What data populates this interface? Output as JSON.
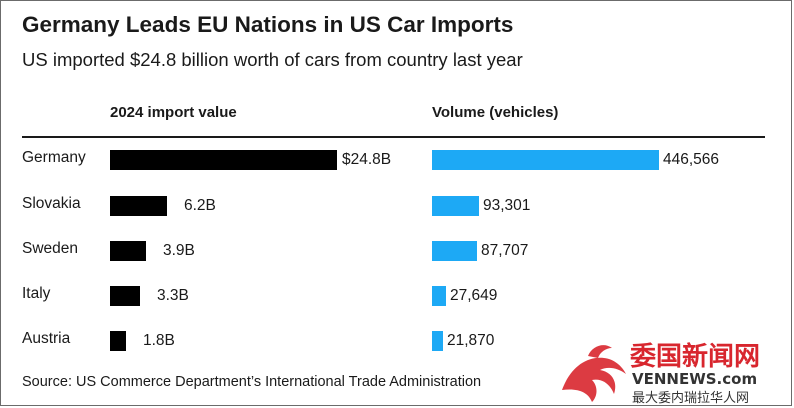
{
  "title": "Germany Leads EU Nations in US Car Imports",
  "subtitle": "US imported $24.8 billion worth of cars from country last year",
  "source": "Source: US Commerce Department’s International Trade Administration",
  "colors": {
    "value_bar": "#000000",
    "volume_bar": "#1da9f5",
    "text": "#1a1a1a"
  },
  "chart_data": {
    "type": "bar",
    "orientation": "horizontal",
    "categories": [
      "Germany",
      "Slovakia",
      "Sweden",
      "Italy",
      "Austria"
    ],
    "series": [
      {
        "name": "2024 import value",
        "unit": "billion USD",
        "values": [
          24.8,
          6.2,
          3.9,
          3.3,
          1.8
        ],
        "labels": [
          "$24.8B",
          "6.2B",
          "3.9B",
          "3.3B",
          "1.8B"
        ],
        "color": "#000000"
      },
      {
        "name": "Volume (vehicles)",
        "unit": "vehicles",
        "values": [
          446566,
          93301,
          87707,
          27649,
          21870
        ],
        "labels": [
          "446,566",
          "93,301",
          "87,707",
          "27,649",
          "21,870"
        ],
        "color": "#1da9f5"
      }
    ],
    "title": "Germany Leads EU Nations in US Car Imports"
  },
  "watermark": {
    "logo_text": "委国新闻网",
    "url_text": "VENNEWS.com",
    "tagline": "最大委内瑞拉华人网"
  }
}
